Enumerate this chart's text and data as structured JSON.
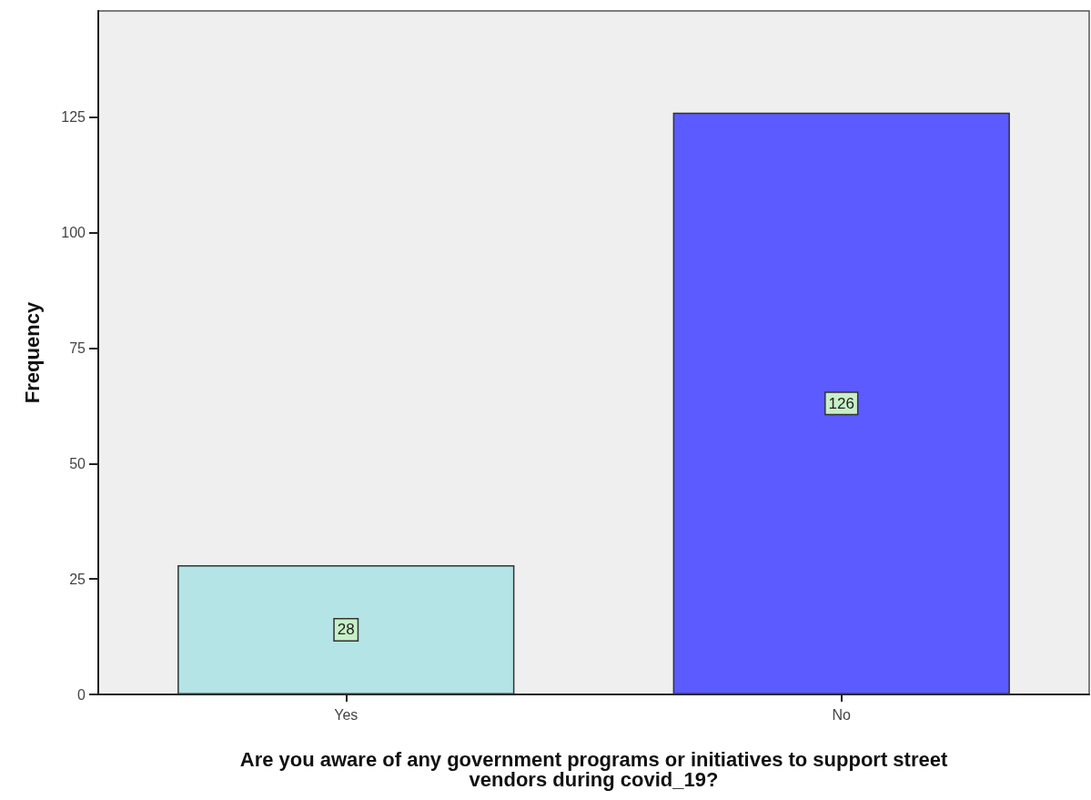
{
  "chart_data": {
    "type": "bar",
    "xlabel": "Are you aware of any government programs or initiatives to support street\nvendors during covid_19?",
    "ylabel": "Frequency",
    "categories": [
      "Yes",
      "No"
    ],
    "values": [
      28,
      126
    ],
    "colors": [
      "#b4e4e6",
      "#5b5bff"
    ],
    "ylim": [
      0,
      148
    ],
    "yticks": [
      0,
      25,
      50,
      75,
      100,
      125
    ],
    "grid": false,
    "data_labels": true
  }
}
